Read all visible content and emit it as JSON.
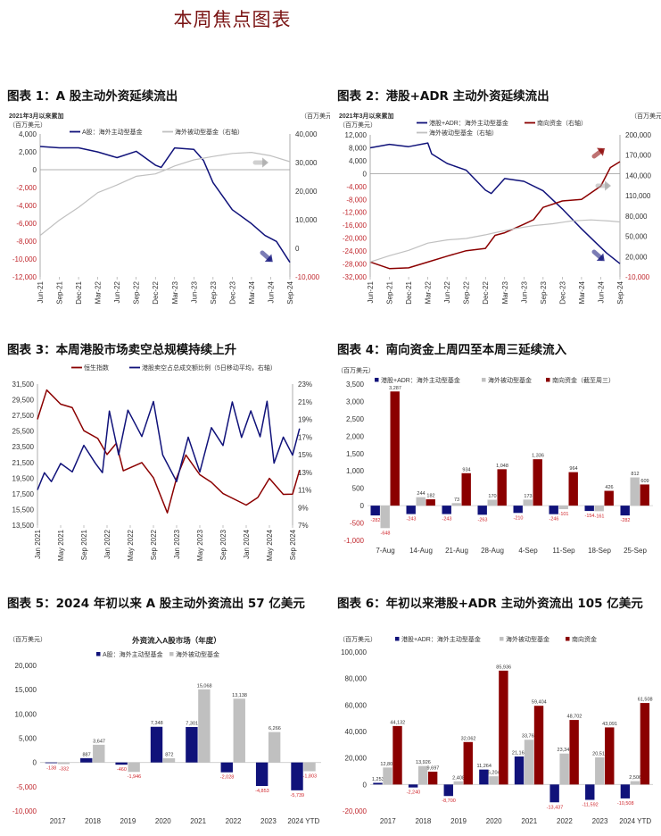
{
  "page": {
    "title": "本周焦点图表"
  },
  "colors": {
    "navy": "#10127a",
    "gray": "#c0c0c0",
    "darkred": "#8b0000",
    "neg_label": "#c0272d",
    "title_red": "#7a1414"
  },
  "figures": [
    {
      "id": 1,
      "title": "图表 1：A 股主动外资延续流出"
    },
    {
      "id": 2,
      "title": "图表 2：港股+ADR 主动外资延续流出"
    },
    {
      "id": 3,
      "title": "图表 3：本周港股市场卖空总规模持续上升"
    },
    {
      "id": 4,
      "title": "图表 4：南向资金上周四至本周三延续流入"
    },
    {
      "id": 5,
      "title": "图表 5：2024 年初以来 A 股主动外资流出 57 亿美元"
    },
    {
      "id": 6,
      "title": "图表 6：年初以来港股+ADR 主动外资流出 105 亿美元"
    }
  ],
  "chart_data": [
    {
      "type": "line",
      "title": "图表 1：A 股主动外资延续流出",
      "subtitle": "2021年3月以来累加",
      "ylabel": "（百万美元）",
      "ylabel_right": "（百万美元）",
      "x": [
        "Jun-21",
        "Sep-21",
        "Dec-21",
        "Mar-22",
        "Jun-22",
        "Sep-22",
        "Dec-22",
        "Mar-23",
        "Jun-23",
        "Sep-23",
        "Dec-23",
        "Mar-24",
        "Jun-24",
        "Sep-24"
      ],
      "ylim": [
        -12000,
        4000
      ],
      "yticks": [
        "4,000",
        "2,000",
        "0",
        "-2,000",
        "-4,000",
        "-6,000",
        "-8,000",
        "-10,000",
        "-12,000"
      ],
      "ylim_right": [
        -10000,
        40000
      ],
      "yticks_right": [
        "40,000",
        "30,000",
        "20,000",
        "10,000",
        "0",
        "-10,000"
      ],
      "series": [
        {
          "name": "A股：海外主动型基金",
          "axis": "left",
          "color": "#10127a",
          "values": [
            2600,
            2500,
            2500,
            2000,
            1300,
            2000,
            500,
            300,
            2500,
            2300,
            1000,
            -1500,
            -4500,
            -6000,
            -7300,
            -8000,
            -10400
          ],
          "x_index": [
            0,
            1,
            2,
            3,
            4,
            5,
            6,
            6.3,
            7,
            8,
            8.5,
            9,
            10,
            11,
            11.7,
            12.3,
            13
          ]
        },
        {
          "name": "海外被动型基金（右轴）",
          "axis": "right",
          "color": "#c0c0c0",
          "values": [
            4500,
            10000,
            14500,
            19500,
            22000,
            25000,
            26000,
            27500,
            29000,
            31000,
            32000,
            33000,
            33500,
            32500,
            30500
          ],
          "x_index": [
            0,
            1,
            2,
            3,
            4,
            5,
            6,
            6.5,
            7,
            8,
            9,
            10,
            11,
            12,
            13
          ]
        }
      ]
    },
    {
      "type": "line",
      "title": "图表 2：港股+ADR 主动外资延续流出",
      "subtitle": "2021年3月以来累加",
      "ylabel": "（百万美元）",
      "ylabel_right": "（百万美元）",
      "x": [
        "Jun-21",
        "Sep-21",
        "Dec-21",
        "Mar-22",
        "Jun-22",
        "Sep-22",
        "Dec-22",
        "Mar-23",
        "Jun-23",
        "Sep-23",
        "Dec-23",
        "Mar-24",
        "Jun-24",
        "Sep-24"
      ],
      "ylim": [
        -32000,
        12000
      ],
      "yticks": [
        "12,000",
        "8,000",
        "4,000",
        "0",
        "-4,000",
        "-8,000",
        "-12,000",
        "-16,000",
        "-20,000",
        "-24,000",
        "-28,000",
        "-32,000"
      ],
      "ylim_right": [
        -10000,
        200000
      ],
      "yticks_right": [
        "200,000",
        "170,000",
        "140,000",
        "110,000",
        "80,000",
        "50,000",
        "20,000",
        "-10,000"
      ],
      "series": [
        {
          "name": "港股+ADR：海外主动型基金",
          "axis": "left",
          "color": "#10127a",
          "values": [
            8000,
            9200,
            8500,
            9500,
            6000,
            3000,
            1000,
            -5000,
            -6000,
            -1500,
            -2500,
            -5500,
            -11000,
            -17000,
            -21000,
            -24500,
            -28000
          ],
          "x_index": [
            0,
            1,
            2,
            3,
            3.2,
            4,
            5,
            6,
            6.3,
            7,
            8,
            9,
            10,
            11,
            11.7,
            12.3,
            13
          ]
        },
        {
          "name": "南向资金（右轴）",
          "axis": "right",
          "color": "#8b0000",
          "values": [
            12000,
            3000,
            4000,
            12000,
            20000,
            28000,
            32000,
            52000,
            56000,
            68000,
            74000,
            92000,
            102000,
            105000,
            125000,
            152000,
            160000
          ],
          "x_index": [
            0,
            1,
            2,
            3,
            4,
            5,
            6,
            6.5,
            7,
            8,
            8.5,
            9,
            10,
            11,
            12,
            12.5,
            13
          ]
        },
        {
          "name": "海外被动型基金（右轴）",
          "axis": "right",
          "color": "#c0c0c0",
          "values": [
            12000,
            22000,
            30000,
            40000,
            44000,
            46000,
            52000,
            56000,
            62000,
            66000,
            68000,
            72000,
            74000,
            73000,
            72000
          ],
          "x_index": [
            0,
            1,
            2,
            3,
            4,
            5,
            6,
            6.5,
            7.5,
            8.5,
            9.5,
            10.5,
            11.5,
            12.5,
            13
          ]
        }
      ]
    },
    {
      "type": "line",
      "title": "图表 3：本周港股市场卖空总规模持续上升",
      "x": [
        "Jan 2021",
        "May 2021",
        "Sep 2021",
        "Jan 2022",
        "May 2022",
        "Sep 2022",
        "Jan 2023",
        "May 2023",
        "Sep 2023",
        "Jan 2024",
        "May 2024",
        "Sep 2024"
      ],
      "ylim": [
        13500,
        31500
      ],
      "yticks": [
        "31,500",
        "29,500",
        "27,500",
        "25,500",
        "23,500",
        "21,500",
        "19,500",
        "17,500",
        "15,500",
        "13,500"
      ],
      "ylim_right": [
        7,
        23
      ],
      "yticks_right": [
        "23%",
        "21%",
        "19%",
        "17%",
        "15%",
        "13%",
        "11%",
        "9%",
        "7%"
      ],
      "series": [
        {
          "name": "恒生指数",
          "axis": "left",
          "color": "#8b0000",
          "values": [
            27000,
            30800,
            29000,
            28500,
            25500,
            24500,
            22500,
            24000,
            20500,
            21500,
            19500,
            15000,
            19500,
            22500,
            20000,
            19000,
            17500,
            16000,
            17000,
            19500,
            17500,
            17500,
            20500
          ],
          "x_index": [
            0,
            0.4,
            1,
            1.5,
            2,
            2.6,
            3,
            3.4,
            3.7,
            4.5,
            5,
            5.6,
            6,
            6.4,
            7,
            7.5,
            8,
            9,
            9.5,
            10,
            10.6,
            11,
            11.3
          ]
        },
        {
          "name": "港股卖空占总成交额比例（5日移动平均，右轴）",
          "axis": "right",
          "color": "#10127a",
          "values": [
            11,
            13,
            12,
            14,
            13,
            16,
            14,
            13,
            20,
            15,
            20,
            17,
            21,
            15,
            12,
            17,
            13,
            18,
            16,
            21,
            17,
            20,
            17,
            21,
            14,
            17,
            15,
            18
          ],
          "x_index": [
            0,
            0.3,
            0.6,
            1,
            1.5,
            2,
            2.5,
            2.8,
            3.1,
            3.5,
            3.9,
            4.5,
            5,
            5.4,
            6,
            6.5,
            7,
            7.5,
            8,
            8.4,
            8.8,
            9.2,
            9.6,
            9.9,
            10.2,
            10.6,
            11,
            11.3
          ]
        }
      ]
    },
    {
      "type": "bar",
      "title": "图表 4：南向资金上周四至本周三延续流入",
      "ylabel": "（百万美元）",
      "categories": [
        "7-Aug",
        "14-Aug",
        "21-Aug",
        "28-Aug",
        "4-Sep",
        "11-Sep",
        "18-Sep",
        "25-Sep"
      ],
      "ylim": [
        -1000,
        3500
      ],
      "yticks": [
        "3,500",
        "3,000",
        "2,500",
        "2,000",
        "1,500",
        "1,000",
        "500",
        "0",
        "-500",
        "-1,000"
      ],
      "series": [
        {
          "name": "港股+ADR：海外主动型基金",
          "color": "#10127a",
          "values": [
            -282,
            -243,
            -243,
            -263,
            -210,
            -246,
            -154,
            -282
          ],
          "labels": [
            "-282",
            "-243",
            "-243",
            "-263",
            "-210",
            "-246",
            "-154",
            "-282"
          ]
        },
        {
          "name": "海外被动型基金",
          "color": "#c0c0c0",
          "values": [
            -648,
            244,
            73,
            170,
            173,
            -101,
            -161,
            812
          ],
          "labels": [
            "-648",
            "244",
            "73",
            "170",
            "173",
            "-101",
            "-161",
            "812"
          ]
        },
        {
          "name": "南向资金（截至周三）",
          "color": "#8b0000",
          "values": [
            3287,
            182,
            934,
            1048,
            1336,
            964,
            426,
            609
          ],
          "labels": [
            "3,287",
            "182",
            "934",
            "1,048",
            "1,336",
            "964",
            "426",
            "609"
          ]
        }
      ]
    },
    {
      "type": "bar",
      "title": "外资流入A股市场（年度）",
      "ylabel": "（百万美元）",
      "categories": [
        "2017",
        "2018",
        "2019",
        "2020",
        "2021",
        "2022",
        "2023",
        "2024 YTD"
      ],
      "ylim": [
        -10000,
        20000
      ],
      "yticks": [
        "20,000",
        "15,000",
        "10,000",
        "5,000",
        "0",
        "-5,000",
        "-10,000"
      ],
      "series": [
        {
          "name": "A股：海外主动型基金",
          "color": "#10127a",
          "values": [
            -138,
            887,
            -460,
            7348,
            7301,
            -2028,
            -4853,
            -5739
          ],
          "labels": [
            "-138",
            "887",
            "-460",
            "7,348",
            "7,301",
            "-2,028",
            "-4,853",
            "-5,739"
          ]
        },
        {
          "name": "海外被动型基金",
          "color": "#c0c0c0",
          "values": [
            -332,
            3647,
            -1946,
            872,
            15068,
            13138,
            6266,
            -1803
          ],
          "labels": [
            "-332",
            "3,647",
            "-1,946",
            "872",
            "15,068",
            "13,138",
            "6,266",
            "-1,803"
          ]
        }
      ]
    },
    {
      "type": "bar",
      "title": "图表 6：年初以来港股+ADR 主动外资流出 105 亿美元",
      "ylabel": "（百万美元）",
      "categories": [
        "2017",
        "2018",
        "2019",
        "2020",
        "2021",
        "2022",
        "2023",
        "2024 YTD"
      ],
      "ylim": [
        -20000,
        100000
      ],
      "yticks": [
        "100,000",
        "80,000",
        "60,000",
        "40,000",
        "20,000",
        "0",
        "-20,000"
      ],
      "series": [
        {
          "name": "港股+ADR：海外主动型基金",
          "color": "#10127a",
          "values": [
            1253,
            -2240,
            -8700,
            11264,
            21165,
            -13437,
            -11592,
            -10508
          ],
          "labels": [
            "1,253",
            "-2,240",
            "-8,700",
            "11,264",
            "21,165",
            "-13,437",
            "-11,592",
            "-10,508"
          ]
        },
        {
          "name": "海外被动型基金",
          "color": "#c0c0c0",
          "values": [
            12803,
            13926,
            2408,
            6204,
            33769,
            23346,
            20517,
            2506
          ],
          "labels": [
            "12,803",
            "13,926",
            "2,408",
            "6,204",
            "33,769",
            "23,346",
            "20,517",
            "2,506"
          ]
        },
        {
          "name": "南向资金",
          "color": "#8b0000",
          "values": [
            44132,
            9697,
            32062,
            85936,
            59404,
            48702,
            43091,
            61508
          ],
          "labels": [
            "44,132",
            "9,697",
            "32,062",
            "85,936",
            "59,404",
            "48,702",
            "43,091",
            "61,508"
          ]
        }
      ]
    }
  ]
}
